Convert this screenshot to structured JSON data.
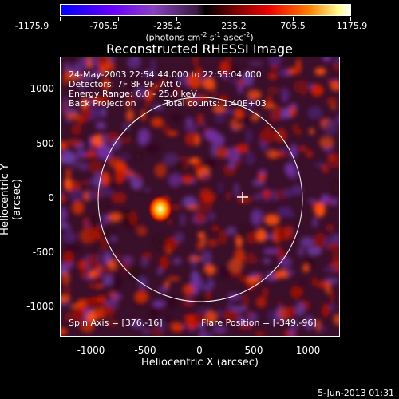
{
  "colorbar": {
    "ticks": [
      "-1175.9",
      "-705.5",
      "-235.2",
      "235.2",
      "705.5",
      "1175.9"
    ],
    "units_prefix": "(photons cm",
    "units_e1": "-2",
    "units_mid": " s",
    "units_e2": "-1",
    "units_mid2": " asec",
    "units_e3": "-2",
    "units_suffix": ")"
  },
  "title": "Reconstructed RHESSI Image",
  "info": {
    "line1": "24-May-2003 22:54:44.000 to 22:55:04.000",
    "line2": "Detectors: 7F 8F 9F, Att 0",
    "line3": "Energy Range: 6.0 - 25.0 keV",
    "line4a": "Back Projection",
    "line4b": "Total counts: 1.40E+03",
    "spin": "Spin Axis = [376,-16]",
    "flare": "Flare Position = [-349,-96]"
  },
  "axes": {
    "xlabel": "Heliocentric X (arcsec)",
    "ylabel": "Heliocentric Y (arcsec)",
    "xticks": [
      "-1000",
      "-500",
      "0",
      "500",
      "1000"
    ],
    "yticks": [
      "1000",
      "500",
      "0",
      "-500",
      "-1000"
    ]
  },
  "footer": "5-Jun-2013 01:31",
  "colors": {
    "background": "#000000",
    "axes": "#ffffff"
  }
}
